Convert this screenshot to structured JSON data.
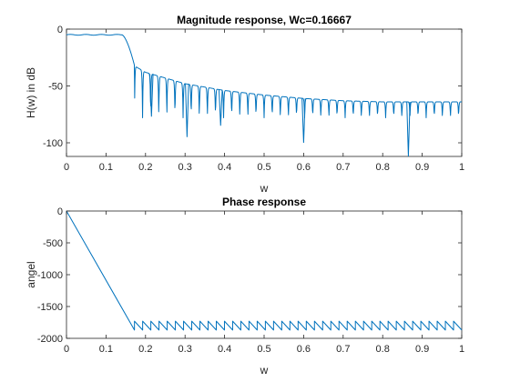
{
  "chart_data": [
    {
      "type": "line",
      "title": "Magnitude response, Wc=0.16667",
      "xlabel": "w",
      "ylabel": "H(w) in dB",
      "xlim": [
        0,
        1
      ],
      "ylim": [
        -112,
        0
      ],
      "xticks": [
        0,
        0.1,
        0.2,
        0.3,
        0.4,
        0.5,
        0.6,
        0.7,
        0.8,
        0.9,
        1
      ],
      "xtick_labels": [
        "0",
        "0.1",
        "0.2",
        "0.3",
        "0.4",
        "0.5",
        "0.6",
        "0.7",
        "0.8",
        "0.9",
        "1"
      ],
      "yticks": [
        0,
        -50,
        -100
      ],
      "ytick_labels": [
        "0",
        "-50",
        "-100"
      ],
      "grid": false,
      "line_color": "#0072BD",
      "passband_level": -5,
      "cutoff": 0.16667,
      "stopband_envelope": [
        [
          0.17,
          -32
        ],
        [
          0.2,
          -38
        ],
        [
          0.25,
          -43
        ],
        [
          0.3,
          -48
        ],
        [
          0.4,
          -54
        ],
        [
          0.5,
          -58
        ],
        [
          0.6,
          -61
        ],
        [
          0.7,
          -63
        ],
        [
          0.8,
          -64
        ],
        [
          0.9,
          -64
        ],
        [
          1.0,
          -64
        ]
      ],
      "deep_nulls": [
        [
          0.215,
          -77
        ],
        [
          0.305,
          -95
        ],
        [
          0.39,
          -85
        ],
        [
          0.6,
          -100
        ],
        [
          0.865,
          -112
        ]
      ],
      "null_depth": -78
    },
    {
      "type": "line",
      "title": "Phase response",
      "xlabel": "w",
      "ylabel": "angel",
      "xlim": [
        0,
        1
      ],
      "ylim": [
        -2000,
        0
      ],
      "xticks": [
        0,
        0.1,
        0.2,
        0.3,
        0.4,
        0.5,
        0.6,
        0.7,
        0.8,
        0.9,
        1
      ],
      "xtick_labels": [
        "0",
        "0.1",
        "0.2",
        "0.3",
        "0.4",
        "0.5",
        "0.6",
        "0.7",
        "0.8",
        "0.9",
        "1"
      ],
      "yticks": [
        0,
        -500,
        -1000,
        -1500,
        -2000
      ],
      "ytick_labels": [
        "0",
        "-500",
        "-1000",
        "-1500",
        "-2000"
      ],
      "grid": false,
      "line_color": "#0072BD",
      "linear_segment": [
        [
          0,
          0
        ],
        [
          0.172,
          -1870
        ]
      ],
      "sawtooth_range": [
        0.172,
        1.0
      ],
      "sawtooth_low": -1870,
      "sawtooth_high": -1730,
      "sawtooth_cycles": 40
    }
  ]
}
